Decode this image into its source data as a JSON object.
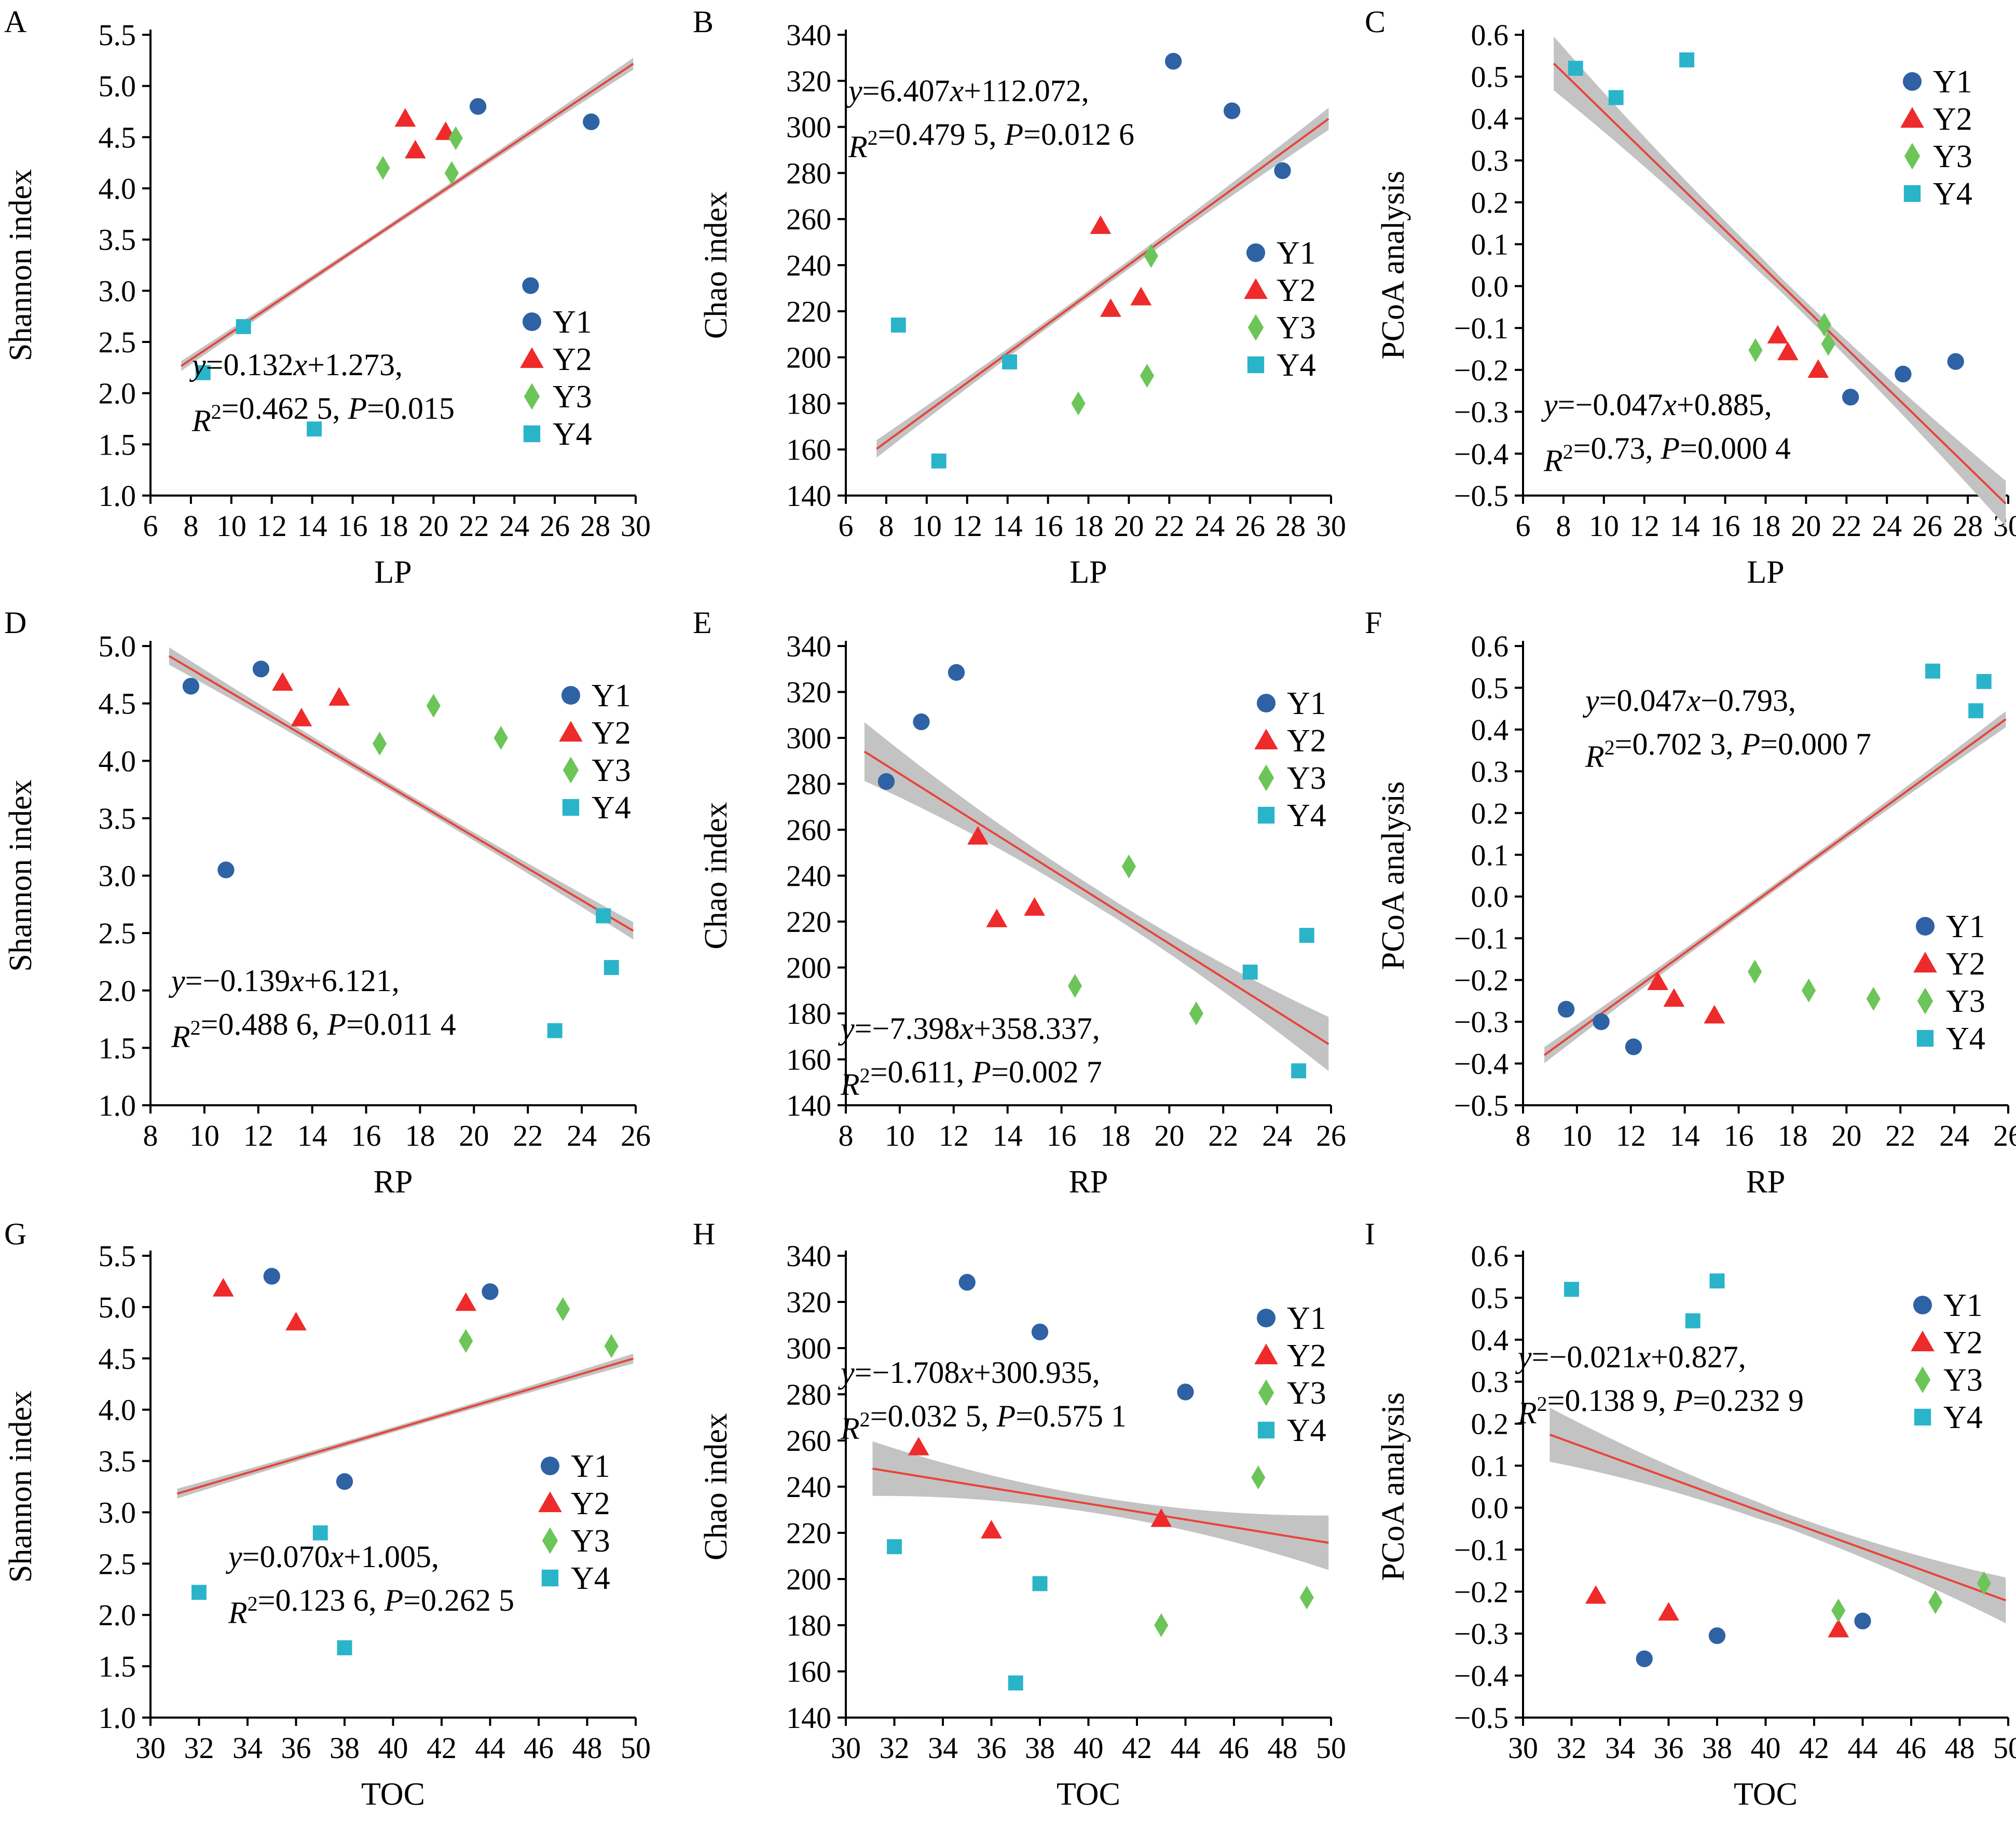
{
  "colors": {
    "Y1": "#2e62a4",
    "Y2": "#ee2a2a",
    "Y3": "#6cc558",
    "Y4": "#2ab4c9",
    "fit_line": "#e8443a",
    "ci_band": "#c3c3c3"
  },
  "legend_items": [
    {
      "label": "Y1",
      "shape": "circle"
    },
    {
      "label": "Y2",
      "shape": "triangle"
    },
    {
      "label": "Y3",
      "shape": "diamond"
    },
    {
      "label": "Y4",
      "shape": "square"
    }
  ],
  "chart_data": [
    {
      "panel": "A",
      "type": "scatter",
      "xlabel": "LP",
      "ylabel": "Shannon index",
      "xlim": [
        6,
        30
      ],
      "ylim": [
        1.0,
        5.5
      ],
      "xticks": [
        "6",
        "8",
        "10",
        "12",
        "14",
        "16",
        "18",
        "20",
        "22",
        "24",
        "26",
        "28",
        "30"
      ],
      "yticks": [
        "1.0",
        "1.5",
        "2.0",
        "2.5",
        "3.0",
        "3.5",
        "4.0",
        "4.5",
        "5.0",
        "5.5"
      ],
      "series": [
        {
          "name": "Y1",
          "points": [
            [
              22.2,
              4.8
            ],
            [
              24.8,
              3.05
            ],
            [
              27.8,
              4.65
            ]
          ]
        },
        {
          "name": "Y2",
          "points": [
            [
              18.6,
              4.68
            ],
            [
              19.1,
              4.37
            ],
            [
              20.6,
              4.55
            ]
          ]
        },
        {
          "name": "Y3",
          "points": [
            [
              17.5,
              4.2
            ],
            [
              20.9,
              4.15
            ],
            [
              21.1,
              4.49
            ]
          ]
        },
        {
          "name": "Y4",
          "points": [
            [
              8.6,
              2.2
            ],
            [
              10.6,
              2.65
            ],
            [
              14.1,
              1.65
            ]
          ]
        }
      ],
      "fit": {
        "slope": 0.132,
        "intercept": 1.273,
        "ci": [
          0.03,
          0.04
        ]
      },
      "equation": [
        "y=0.132x+1.273,",
        "R2=0.462 5, P=0.015"
      ],
      "legend": "bottom-right"
    },
    {
      "panel": "B",
      "type": "scatter",
      "xlabel": "LP",
      "ylabel": "Chao index",
      "xlim": [
        6,
        30
      ],
      "ylim": [
        140,
        340
      ],
      "xticks": [
        "6",
        "8",
        "10",
        "12",
        "14",
        "16",
        "18",
        "20",
        "22",
        "24",
        "26",
        "28",
        "30"
      ],
      "yticks": [
        "140",
        "160",
        "180",
        "200",
        "220",
        "240",
        "260",
        "280",
        "300",
        "320",
        "340"
      ],
      "series": [
        {
          "name": "Y1",
          "points": [
            [
              22.2,
              328.5
            ],
            [
              25.1,
              307
            ],
            [
              27.6,
              281
            ]
          ]
        },
        {
          "name": "Y2",
          "points": [
            [
              18.6,
              257
            ],
            [
              19.1,
              221
            ],
            [
              20.6,
              226
            ]
          ]
        },
        {
          "name": "Y3",
          "points": [
            [
              17.5,
              180
            ],
            [
              20.9,
              192
            ],
            [
              21.1,
              244
            ]
          ]
        },
        {
          "name": "Y4",
          "points": [
            [
              8.6,
              214
            ],
            [
              10.6,
              155
            ],
            [
              14.1,
              198
            ]
          ]
        }
      ],
      "fit": {
        "slope": 6.407,
        "intercept": 112.072,
        "ci": [
          3,
          4
        ]
      },
      "equation": [
        "y=6.407x+112.072,",
        "R2=0.479 5, P=0.012 6"
      ],
      "legend": "right"
    },
    {
      "panel": "C",
      "type": "scatter",
      "xlabel": "LP",
      "ylabel": "PCoA analysis",
      "xlim": [
        6,
        30
      ],
      "ylim": [
        -0.5,
        0.6
      ],
      "xticks": [
        "6",
        "8",
        "10",
        "12",
        "14",
        "16",
        "18",
        "20",
        "22",
        "24",
        "26",
        "28",
        "30"
      ],
      "yticks": [
        "-0.5",
        "-0.4",
        "-0.3",
        "-0.2",
        "-0.1",
        "0.0",
        "0.1",
        "0.2",
        "0.3",
        "0.4",
        "0.5",
        "0.6"
      ],
      "series": [
        {
          "name": "Y1",
          "points": [
            [
              22.2,
              -0.265
            ],
            [
              24.8,
              -0.21
            ],
            [
              27.4,
              -0.18
            ]
          ]
        },
        {
          "name": "Y2",
          "points": [
            [
              18.6,
              -0.118
            ],
            [
              19.1,
              -0.158
            ],
            [
              20.6,
              -0.2
            ]
          ]
        },
        {
          "name": "Y3",
          "points": [
            [
              17.5,
              -0.153
            ],
            [
              20.9,
              -0.092
            ],
            [
              21.1,
              -0.138
            ]
          ]
        },
        {
          "name": "Y4",
          "points": [
            [
              8.6,
              0.52
            ],
            [
              10.6,
              0.45
            ],
            [
              14.1,
              0.54
            ]
          ]
        }
      ],
      "fit": {
        "slope": -0.047,
        "intercept": 0.885,
        "ci": [
          0.06,
          0.05
        ]
      },
      "equation": [
        "y=−0.047x+0.885,",
        "R2=0.73, P=0.000 4"
      ],
      "legend": "top-right"
    },
    {
      "panel": "D",
      "type": "scatter",
      "xlabel": "RP",
      "ylabel": "Shannon index",
      "xlim": [
        8,
        26
      ],
      "ylim": [
        1.0,
        5.0
      ],
      "xticks": [
        "8",
        "10",
        "12",
        "14",
        "16",
        "18",
        "20",
        "22",
        "24",
        "26"
      ],
      "yticks": [
        "1.0",
        "1.5",
        "2.0",
        "2.5",
        "3.0",
        "3.5",
        "4.0",
        "4.5",
        "5.0"
      ],
      "series": [
        {
          "name": "Y1",
          "points": [
            [
              9.5,
              4.65
            ],
            [
              10.8,
              3.05
            ],
            [
              12.1,
              4.8
            ]
          ]
        },
        {
          "name": "Y2",
          "points": [
            [
              12.9,
              4.68
            ],
            [
              13.6,
              4.37
            ],
            [
              15.0,
              4.55
            ]
          ]
        },
        {
          "name": "Y3",
          "points": [
            [
              16.5,
              4.15
            ],
            [
              18.5,
              4.48
            ],
            [
              21.0,
              4.2
            ]
          ]
        },
        {
          "name": "Y4",
          "points": [
            [
              23.0,
              1.65
            ],
            [
              24.8,
              2.65
            ],
            [
              25.1,
              2.2
            ]
          ]
        }
      ],
      "fit": {
        "slope": -0.139,
        "intercept": 6.121,
        "ci": [
          0.06,
          0.06
        ]
      },
      "equation": [
        "y=−0.139x+6.121,",
        "R2=0.488 6, P=0.011 4"
      ],
      "legend": "top-right"
    },
    {
      "panel": "E",
      "type": "scatter",
      "xlabel": "RP",
      "ylabel": "Chao index",
      "xlim": [
        8,
        26
      ],
      "ylim": [
        140,
        340
      ],
      "xticks": [
        "8",
        "10",
        "12",
        "14",
        "16",
        "18",
        "20",
        "22",
        "24",
        "26"
      ],
      "yticks": [
        "140",
        "160",
        "180",
        "200",
        "220",
        "240",
        "260",
        "280",
        "300",
        "320",
        "340"
      ],
      "series": [
        {
          "name": "Y1",
          "points": [
            [
              9.5,
              281
            ],
            [
              10.8,
              307
            ],
            [
              12.1,
              328.5
            ]
          ]
        },
        {
          "name": "Y2",
          "points": [
            [
              12.9,
              257
            ],
            [
              13.6,
              221
            ],
            [
              15.0,
              226
            ]
          ]
        },
        {
          "name": "Y3",
          "points": [
            [
              16.5,
              192
            ],
            [
              18.5,
              244
            ],
            [
              21.0,
              180
            ]
          ]
        },
        {
          "name": "Y4",
          "points": [
            [
              23.0,
              198
            ],
            [
              24.8,
              155
            ],
            [
              25.1,
              214
            ]
          ]
        }
      ],
      "fit": {
        "slope": -7.398,
        "intercept": 358.337,
        "ci": [
          12,
          11
        ]
      },
      "equation": [
        "y=−7.398x+358.337,",
        "R2=0.611, P=0.002 7"
      ],
      "legend": "top-right"
    },
    {
      "panel": "F",
      "type": "scatter",
      "xlabel": "RP",
      "ylabel": "PCoA analysis",
      "xlim": [
        8,
        26
      ],
      "ylim": [
        -0.5,
        0.6
      ],
      "xticks": [
        "8",
        "10",
        "12",
        "14",
        "16",
        "18",
        "20",
        "22",
        "24",
        "26"
      ],
      "yticks": [
        "-0.5",
        "-0.4",
        "-0.3",
        "-0.2",
        "-0.1",
        "0.0",
        "0.1",
        "0.2",
        "0.3",
        "0.4",
        "0.5",
        "0.6"
      ],
      "series": [
        {
          "name": "Y1",
          "points": [
            [
              9.6,
              -0.27
            ],
            [
              10.9,
              -0.3
            ],
            [
              12.1,
              -0.36
            ]
          ]
        },
        {
          "name": "Y2",
          "points": [
            [
              13.0,
              -0.205
            ],
            [
              13.6,
              -0.245
            ],
            [
              15.1,
              -0.285
            ]
          ]
        },
        {
          "name": "Y3",
          "points": [
            [
              16.6,
              -0.18
            ],
            [
              18.6,
              -0.225
            ],
            [
              21.0,
              -0.245
            ]
          ]
        },
        {
          "name": "Y4",
          "points": [
            [
              23.2,
              0.54
            ],
            [
              24.8,
              0.445
            ],
            [
              25.1,
              0.515
            ]
          ]
        }
      ],
      "fit": {
        "slope": 0.047,
        "intercept": -0.793,
        "ci": [
          0.015,
          0.015
        ]
      },
      "equation": [
        "y=0.047x−0.793,",
        "R2=0.702 3, P=0.000 7"
      ],
      "legend": "right"
    },
    {
      "panel": "G",
      "type": "scatter",
      "xlabel": "TOC",
      "ylabel": "Shannon index",
      "xlim": [
        30,
        50
      ],
      "ylim": [
        1.0,
        5.5
      ],
      "xticks": [
        "30",
        "32",
        "34",
        "36",
        "38",
        "40",
        "42",
        "44",
        "46",
        "48",
        "50"
      ],
      "yticks": [
        "1.0",
        "1.5",
        "2.0",
        "2.5",
        "3.0",
        "3.5",
        "4.0",
        "4.5",
        "5.0",
        "5.5"
      ],
      "series": [
        {
          "name": "Y1",
          "points": [
            [
              35,
              5.3
            ],
            [
              38,
              3.3
            ],
            [
              44,
              5.15
            ]
          ]
        },
        {
          "name": "Y2",
          "points": [
            [
              33,
              5.18
            ],
            [
              36,
              4.85
            ],
            [
              43,
              5.04
            ]
          ]
        },
        {
          "name": "Y3",
          "points": [
            [
              43,
              4.67
            ],
            [
              47,
              4.98
            ],
            [
              49,
              4.62
            ]
          ]
        },
        {
          "name": "Y4",
          "points": [
            [
              32,
              2.22
            ],
            [
              37,
              2.8
            ],
            [
              38,
              1.68
            ]
          ]
        }
      ],
      "fit": {
        "slope": 0.07,
        "intercept": 1.005,
        "ci": [
          0.03,
          0.03
        ]
      },
      "equation": [
        "y=0.070x+1.005,",
        "R2=0.123 6, P=0.262 5"
      ],
      "legend": "right"
    },
    {
      "panel": "H",
      "type": "scatter",
      "xlabel": "TOC",
      "ylabel": "Chao index",
      "xlim": [
        30,
        50
      ],
      "ylim": [
        140,
        340
      ],
      "xticks": [
        "30",
        "32",
        "34",
        "36",
        "38",
        "40",
        "42",
        "44",
        "46",
        "48",
        "50"
      ],
      "yticks": [
        "140",
        "160",
        "180",
        "200",
        "220",
        "240",
        "260",
        "280",
        "300",
        "320",
        "340"
      ],
      "series": [
        {
          "name": "Y1",
          "points": [
            [
              35,
              328.5
            ],
            [
              38,
              307
            ],
            [
              44,
              281
            ]
          ]
        },
        {
          "name": "Y2",
          "points": [
            [
              33,
              257
            ],
            [
              36,
              221
            ],
            [
              43,
              226
            ]
          ]
        },
        {
          "name": "Y3",
          "points": [
            [
              43,
              180
            ],
            [
              47,
              244
            ],
            [
              49,
              192
            ]
          ]
        },
        {
          "name": "Y4",
          "points": [
            [
              32,
              214
            ],
            [
              37,
              155
            ],
            [
              38,
              198
            ]
          ]
        }
      ],
      "fit": {
        "slope": -1.708,
        "intercept": 300.935,
        "ci": [
          11,
          11
        ]
      },
      "equation": [
        "y=−1.708x+300.935,",
        "R2=0.032 5, P=0.575 1"
      ],
      "legend": "top-right"
    },
    {
      "panel": "I",
      "type": "scatter",
      "xlabel": "TOC",
      "ylabel": "PCoA analysis",
      "xlim": [
        30,
        50
      ],
      "ylim": [
        -0.5,
        0.6
      ],
      "xticks": [
        "30",
        "32",
        "34",
        "36",
        "38",
        "40",
        "42",
        "44",
        "46",
        "48",
        "50"
      ],
      "yticks": [
        "-0.5",
        "-0.4",
        "-0.3",
        "-0.2",
        "-0.1",
        "0.0",
        "0.1",
        "0.2",
        "0.3",
        "0.4",
        "0.5",
        "0.6"
      ],
      "series": [
        {
          "name": "Y1",
          "points": [
            [
              35,
              -0.36
            ],
            [
              38,
              -0.305
            ],
            [
              44,
              -0.27
            ]
          ]
        },
        {
          "name": "Y2",
          "points": [
            [
              33,
              -0.21
            ],
            [
              36,
              -0.25
            ],
            [
              43,
              -0.29
            ]
          ]
        },
        {
          "name": "Y3",
          "points": [
            [
              43,
              -0.245
            ],
            [
              47,
              -0.225
            ],
            [
              49,
              -0.18
            ]
          ]
        },
        {
          "name": "Y4",
          "points": [
            [
              32,
              0.52
            ],
            [
              37,
              0.445
            ],
            [
              38,
              0.54
            ]
          ]
        }
      ],
      "fit": {
        "slope": -0.021,
        "intercept": 0.827,
        "ci": [
          0.06,
          0.05
        ]
      },
      "equation": [
        "y=−0.021x+0.827,",
        "R2=0.138 9, P=0.232 9"
      ],
      "legend": "right"
    }
  ]
}
